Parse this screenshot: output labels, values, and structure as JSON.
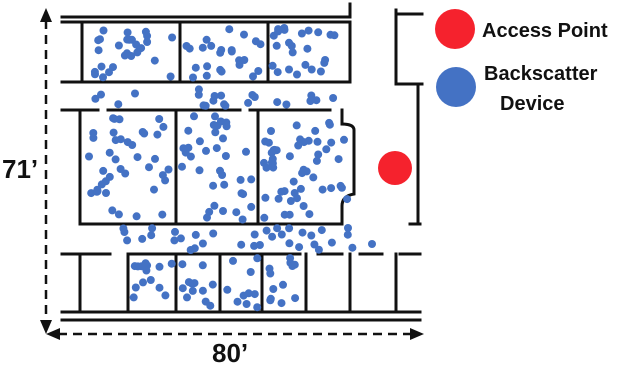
{
  "legend": {
    "access_point_label": "Access Point",
    "backscatter_label_line1": "Backscatter",
    "backscatter_label_line2": "Device"
  },
  "dimensions": {
    "height_label": "71’",
    "width_label": "80’"
  },
  "colors": {
    "access_point": "#f5222d",
    "backscatter_device": "#4472c4",
    "wall": "#111111"
  }
}
